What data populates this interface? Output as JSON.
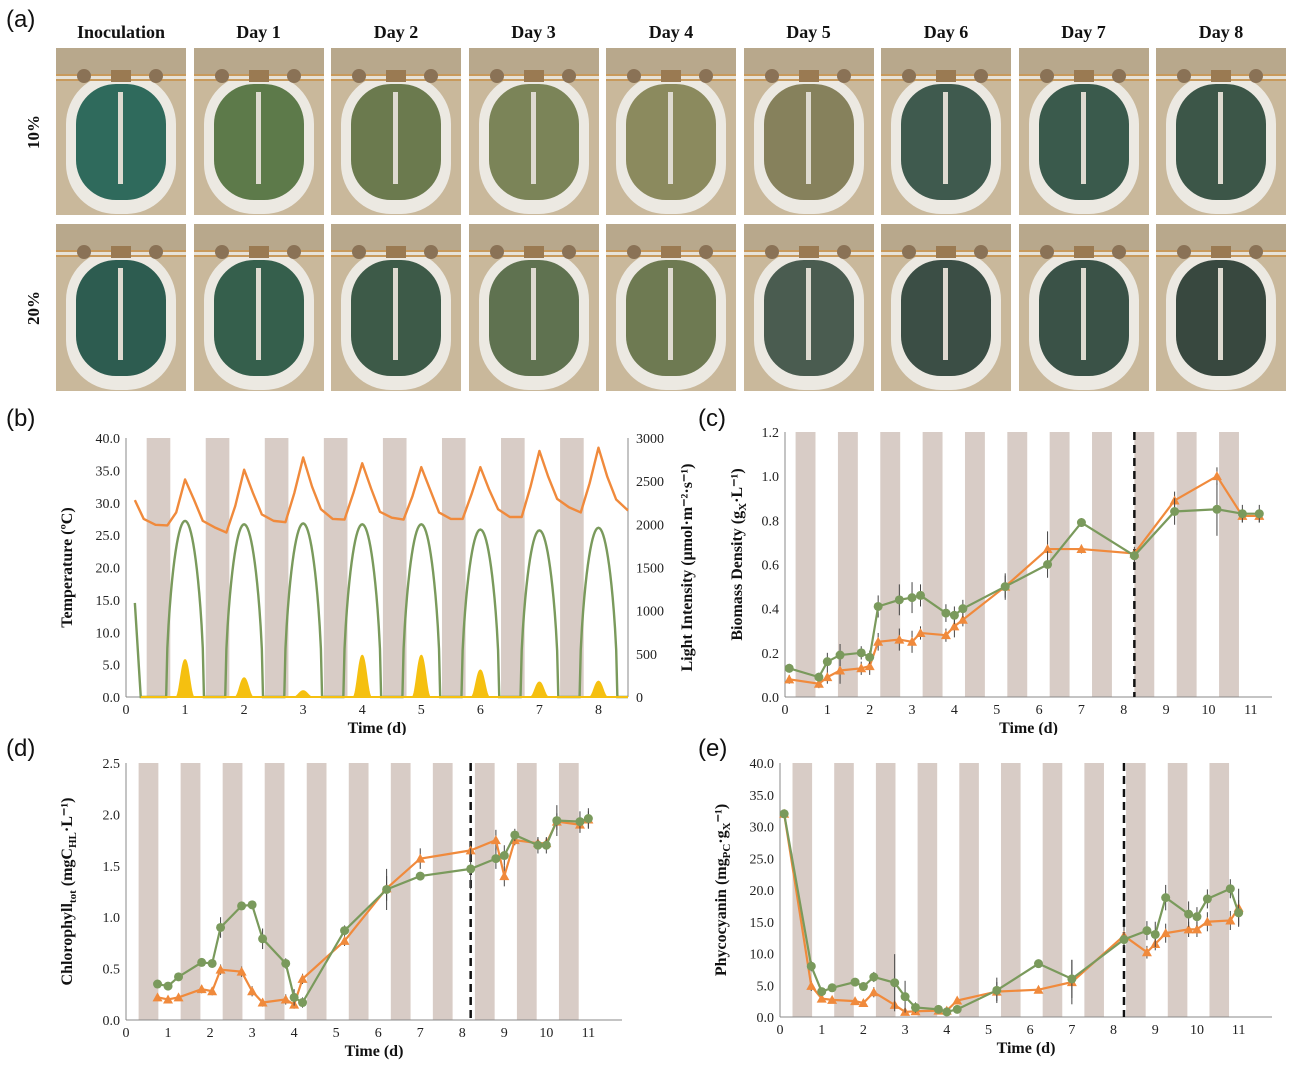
{
  "panel_labels": {
    "a": "(a)",
    "b": "(b)",
    "c": "(c)",
    "d": "(d)",
    "e": "(e)"
  },
  "photo_grid": {
    "columns": [
      "Inoculation",
      "Day 1",
      "Day 2",
      "Day 3",
      "Day 4",
      "Day 5",
      "Day 6",
      "Day 7",
      "Day 8"
    ],
    "rows": [
      {
        "label": "10%",
        "water_colors": [
          "#2f6a5c",
          "#5d7a4a",
          "#6b7a4e",
          "#7b8458",
          "#8b8a5e",
          "#86815c",
          "#3f5a4e",
          "#3a5a4c",
          "#3c5648"
        ]
      },
      {
        "label": "20%",
        "water_colors": [
          "#2d5c50",
          "#355f4c",
          "#3d5a48",
          "#5f7250",
          "#6e7a52",
          "#4a5c50",
          "#3b4e45",
          "#3a5247",
          "#38483f"
        ]
      }
    ]
  },
  "colors": {
    "orange": "#f08a3c",
    "green": "#7a9a5c",
    "yellow": "#f5c010",
    "band": "#d8ccc6",
    "dash": "#111111"
  },
  "chart_data": [
    {
      "id": "b",
      "type": "line",
      "xlabel": "Time (d)",
      "ylabel": "Temperature (ºC)",
      "y2label": "Light Intensity (μmol·m⁻²·s⁻¹)",
      "xlim": [
        0,
        8.5
      ],
      "ylim": [
        0,
        40
      ],
      "y2lim": [
        0,
        3000
      ],
      "xticks": [
        "0",
        "1",
        "2",
        "3",
        "4",
        "5",
        "6",
        "7",
        "8"
      ],
      "yticks": [
        "0.0",
        "5.0",
        "10.0",
        "15.0",
        "20.0",
        "25.0",
        "30.0",
        "35.0",
        "40.0"
      ],
      "y2ticks": [
        "0",
        "500",
        "1000",
        "1500",
        "2000",
        "2500",
        "3000"
      ],
      "series": [
        {
          "role": "temperature",
          "color": "orange",
          "x": [
            0.15,
            0.3,
            0.5,
            0.7,
            0.85,
            1.0,
            1.15,
            1.3,
            1.5,
            1.7,
            1.85,
            2.0,
            2.15,
            2.3,
            2.5,
            2.7,
            2.85,
            3.0,
            3.15,
            3.3,
            3.5,
            3.7,
            3.85,
            4.0,
            4.15,
            4.3,
            4.5,
            4.7,
            4.85,
            5.0,
            5.15,
            5.3,
            5.5,
            5.7,
            5.85,
            6.0,
            6.15,
            6.3,
            6.5,
            6.7,
            6.85,
            7.0,
            7.15,
            7.3,
            7.5,
            7.7,
            7.85,
            8.0,
            8.15,
            8.3,
            8.5
          ],
          "y": [
            30.4,
            27.5,
            26.6,
            26.5,
            28.5,
            33.6,
            30.5,
            27.2,
            26.2,
            25.4,
            29.5,
            35.1,
            31.5,
            28.2,
            27.2,
            27.0,
            31.5,
            37.0,
            32.5,
            29.0,
            27.5,
            27.4,
            31.5,
            36.1,
            32.2,
            28.6,
            27.7,
            27.4,
            31.0,
            35.5,
            32.0,
            28.5,
            27.5,
            27.5,
            31.3,
            35.5,
            32.0,
            29.0,
            27.8,
            27.8,
            32.5,
            38.0,
            34.0,
            30.6,
            29.3,
            28.5,
            33.0,
            38.5,
            34.0,
            30.5,
            28.8
          ]
        },
        {
          "role": "light_intensity",
          "color": "green",
          "peak_days": [
            1,
            2,
            3,
            4,
            5,
            6,
            7,
            8
          ],
          "peak_values": [
            2040,
            2000,
            2010,
            2000,
            2000,
            1940,
            1930,
            1960
          ],
          "start_value": 1090
        },
        {
          "role": "light_intensity_2",
          "color": "yellow",
          "peak_days": [
            1,
            2,
            3,
            4,
            5,
            6,
            7,
            8
          ],
          "peak_values": [
            430,
            220,
            70,
            480,
            480,
            310,
            170,
            180
          ]
        }
      ]
    },
    {
      "id": "c",
      "type": "line",
      "xlabel": "Time (d)",
      "ylabel": "Biomass Density (g",
      "ylabel_sub": "X",
      "ylabel_end": "·L⁻¹)",
      "xlim": [
        0,
        11.5
      ],
      "ylim": [
        0,
        1.2
      ],
      "xticks": [
        "0",
        "1",
        "2",
        "3",
        "4",
        "5",
        "6",
        "7",
        "8",
        "9",
        "10",
        "11"
      ],
      "yticks": [
        "0.0",
        "0.2",
        "0.4",
        "0.6",
        "0.8",
        "1.0",
        "1.2"
      ],
      "dashed_x": 8.25,
      "series": [
        {
          "role": "orange",
          "marker": "triangle",
          "x": [
            0.1,
            0.8,
            1.0,
            1.3,
            1.8,
            2.0,
            2.2,
            2.7,
            3.0,
            3.2,
            3.8,
            4.0,
            4.2,
            5.2,
            6.2,
            7.0,
            8.25,
            9.2,
            10.2,
            10.8,
            11.2
          ],
          "y": [
            0.08,
            0.06,
            0.09,
            0.12,
            0.13,
            0.14,
            0.25,
            0.26,
            0.25,
            0.29,
            0.28,
            0.32,
            0.35,
            0.5,
            0.67,
            0.67,
            0.65,
            0.89,
            1.0,
            0.82,
            0.82
          ],
          "err": [
            0.02,
            0.02,
            0.03,
            0.06,
            0.03,
            0.04,
            0.04,
            0.05,
            0.05,
            0.03,
            0.03,
            0.05,
            0.03,
            0.06,
            0.08,
            0.02,
            0.03,
            0.04,
            0.04,
            0.03,
            0.03
          ]
        },
        {
          "role": "green",
          "marker": "circle",
          "x": [
            0.1,
            0.8,
            1.0,
            1.3,
            1.8,
            2.0,
            2.2,
            2.7,
            3.0,
            3.2,
            3.8,
            4.0,
            4.2,
            5.2,
            6.2,
            7.0,
            8.25,
            9.2,
            10.2,
            10.8,
            11.2
          ],
          "y": [
            0.13,
            0.09,
            0.16,
            0.19,
            0.2,
            0.18,
            0.41,
            0.44,
            0.45,
            0.46,
            0.38,
            0.37,
            0.4,
            0.5,
            0.6,
            0.79,
            0.64,
            0.84,
            0.85,
            0.83,
            0.83
          ],
          "err": [
            0.02,
            0.02,
            0.04,
            0.05,
            0.03,
            0.03,
            0.05,
            0.07,
            0.07,
            0.05,
            0.04,
            0.04,
            0.04,
            0.05,
            0.06,
            0.02,
            0.03,
            0.06,
            0.12,
            0.04,
            0.04
          ]
        }
      ]
    },
    {
      "id": "d",
      "type": "line",
      "xlabel": "Time (d)",
      "ylabel": "Chlorophyll",
      "ylabel_sub": "tot",
      "ylabel_end": " (mgC",
      "ylabel_sub2": "HL",
      "ylabel_end2": "·L⁻¹)",
      "xlim": [
        0,
        11.8
      ],
      "ylim": [
        0,
        2.5
      ],
      "xticks": [
        "0",
        "1",
        "2",
        "3",
        "4",
        "5",
        "6",
        "7",
        "8",
        "9",
        "10",
        "11"
      ],
      "yticks": [
        "0.0",
        "0.5",
        "1.0",
        "1.5",
        "2.0",
        "2.5"
      ],
      "dashed_x": 8.2,
      "series": [
        {
          "role": "orange",
          "marker": "triangle",
          "x": [
            0.75,
            1.0,
            1.25,
            1.8,
            2.05,
            2.25,
            2.75,
            3.0,
            3.25,
            3.8,
            4.0,
            4.2,
            5.2,
            6.2,
            7.0,
            8.2,
            8.8,
            9.0,
            9.25,
            9.8,
            10.0,
            10.25,
            10.8,
            11.0
          ],
          "y": [
            0.22,
            0.2,
            0.22,
            0.3,
            0.28,
            0.49,
            0.47,
            0.28,
            0.17,
            0.2,
            0.15,
            0.4,
            0.77,
            1.28,
            1.57,
            1.65,
            1.75,
            1.4,
            1.75,
            1.72,
            1.72,
            1.93,
            1.9,
            1.95
          ],
          "err": [
            0.03,
            0.03,
            0.03,
            0.04,
            0.04,
            0.05,
            0.05,
            0.05,
            0.04,
            0.05,
            0.04,
            0.05,
            0.05,
            0.12,
            0.1,
            0.08,
            0.1,
            0.1,
            0.05,
            0.05,
            0.05,
            0.08,
            0.08,
            0.08
          ]
        },
        {
          "role": "green",
          "marker": "circle",
          "x": [
            0.75,
            1.0,
            1.25,
            1.8,
            2.05,
            2.25,
            2.75,
            3.0,
            3.25,
            3.8,
            4.0,
            4.2,
            5.2,
            6.2,
            7.0,
            8.2,
            8.8,
            9.0,
            9.25,
            9.8,
            10.0,
            10.25,
            10.8,
            11.0
          ],
          "y": [
            0.35,
            0.33,
            0.42,
            0.56,
            0.55,
            0.9,
            1.11,
            1.12,
            0.79,
            0.55,
            0.22,
            0.17,
            0.87,
            1.27,
            1.4,
            1.47,
            1.57,
            1.6,
            1.8,
            1.7,
            1.7,
            1.94,
            1.93,
            1.96
          ],
          "err": [
            0.03,
            0.03,
            0.03,
            0.03,
            0.03,
            0.1,
            0.04,
            0.04,
            0.1,
            0.05,
            0.08,
            0.05,
            0.05,
            0.2,
            0.04,
            0.2,
            0.1,
            0.1,
            0.06,
            0.08,
            0.08,
            0.15,
            0.1,
            0.1
          ]
        }
      ]
    },
    {
      "id": "e",
      "type": "line",
      "xlabel": "Time (d)",
      "ylabel": "Phycocyanin (mg",
      "ylabel_sub": "PC",
      "ylabel_end": "·g",
      "ylabel_sub2": "X",
      "ylabel_end2": "⁻¹)",
      "xlim": [
        0,
        11.8
      ],
      "ylim": [
        0,
        40
      ],
      "xticks": [
        "0",
        "1",
        "2",
        "3",
        "4",
        "5",
        "6",
        "7",
        "8",
        "9",
        "10",
        "11"
      ],
      "yticks": [
        "0.0",
        "5.0",
        "10.0",
        "15.0",
        "20.0",
        "25.0",
        "30.0",
        "35.0",
        "40.0"
      ],
      "dashed_x": 8.25,
      "series": [
        {
          "role": "orange",
          "marker": "triangle",
          "x": [
            0.1,
            0.75,
            1.0,
            1.25,
            1.8,
            2.0,
            2.25,
            2.75,
            3.0,
            3.25,
            3.8,
            4.0,
            4.25,
            5.2,
            6.2,
            7.0,
            8.25,
            8.8,
            9.0,
            9.25,
            9.8,
            10.0,
            10.25,
            10.8,
            11.0
          ],
          "y": [
            32.0,
            4.9,
            2.9,
            2.7,
            2.5,
            2.2,
            3.9,
            1.9,
            0.8,
            0.9,
            1.0,
            1.0,
            2.6,
            4.0,
            4.3,
            5.5,
            12.8,
            10.2,
            11.5,
            13.2,
            13.8,
            13.8,
            15.0,
            15.2,
            17.2
          ],
          "err": [
            0.5,
            0.8,
            0.5,
            0.5,
            0.5,
            0.5,
            0.8,
            0.5,
            0.5,
            0.5,
            0.5,
            0.5,
            0.5,
            1.5,
            0.5,
            3.5,
            1.5,
            1.0,
            1.0,
            1.5,
            1.2,
            1.2,
            1.5,
            1.5,
            3.0
          ]
        },
        {
          "role": "green",
          "marker": "circle",
          "x": [
            0.1,
            0.75,
            1.0,
            1.25,
            1.8,
            2.0,
            2.25,
            2.75,
            3.0,
            3.25,
            3.8,
            4.0,
            4.25,
            5.2,
            6.2,
            7.0,
            8.25,
            8.8,
            9.0,
            9.25,
            9.8,
            10.0,
            10.25,
            10.8,
            11.0
          ],
          "y": [
            32.0,
            8.0,
            4.0,
            4.6,
            5.5,
            4.8,
            6.3,
            5.4,
            3.2,
            1.5,
            1.2,
            0.8,
            1.2,
            4.2,
            8.4,
            6.0,
            12.2,
            13.6,
            13.0,
            18.8,
            16.2,
            15.8,
            18.6,
            20.2,
            16.4
          ],
          "err": [
            0.5,
            0.8,
            0.5,
            0.5,
            0.5,
            0.5,
            0.8,
            4.5,
            2.5,
            0.8,
            0.5,
            0.5,
            0.5,
            2.0,
            0.5,
            3.0,
            1.2,
            1.5,
            2.0,
            2.0,
            2.0,
            1.5,
            1.5,
            1.5,
            2.0
          ]
        }
      ]
    }
  ]
}
